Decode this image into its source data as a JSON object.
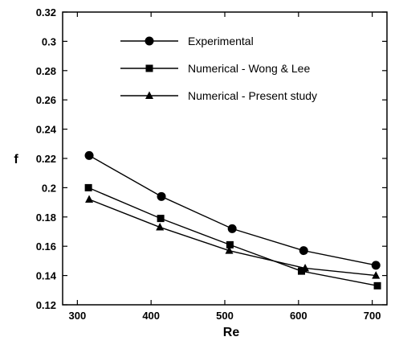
{
  "chart_data": {
    "type": "line",
    "title": "",
    "xlabel": "Re",
    "ylabel": "f",
    "xlim": [
      280,
      720
    ],
    "ylim": [
      0.12,
      0.32
    ],
    "xticks": [
      300,
      400,
      500,
      600,
      700
    ],
    "xtick_labels": [
      "300",
      "400",
      "500",
      "600",
      "700"
    ],
    "yticks": [
      0.12,
      0.14,
      0.16,
      0.18,
      0.2,
      0.22,
      0.24,
      0.26,
      0.28,
      0.3,
      0.32
    ],
    "ytick_labels": [
      "0.12",
      "0.14",
      "0.16",
      "0.18",
      "0.2",
      "0.22",
      "0.24",
      "0.26",
      "0.28",
      "0.3",
      "0.32"
    ],
    "grid": false,
    "legend_position": "top-center",
    "series": [
      {
        "name": "Experimental",
        "marker": "circle",
        "color": "#000000",
        "x": [
          316,
          414,
          510,
          607,
          705
        ],
        "y": [
          0.222,
          0.194,
          0.172,
          0.157,
          0.147
        ]
      },
      {
        "name": "Numerical - Wong & Lee",
        "marker": "square",
        "color": "#000000",
        "x": [
          315,
          413,
          507,
          604,
          707
        ],
        "y": [
          0.2,
          0.179,
          0.161,
          0.143,
          0.133
        ]
      },
      {
        "name": "Numerical - Present study",
        "marker": "triangle",
        "color": "#000000",
        "x": [
          316,
          412,
          506,
          609,
          705
        ],
        "y": [
          0.192,
          0.173,
          0.157,
          0.145,
          0.14
        ]
      }
    ]
  }
}
